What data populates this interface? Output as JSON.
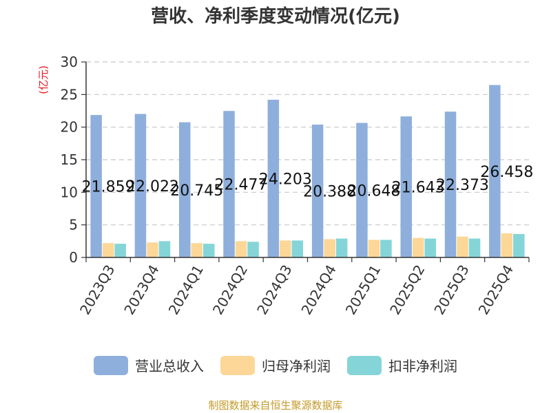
{
  "colors": {
    "revenue": "#8eafdc",
    "parent_net_profit": "#fcd798",
    "non_recurring_net_profit": "#85d5d8",
    "ylabel": "#e8141e",
    "source": "#c39a29"
  },
  "chart_data": {
    "type": "bar",
    "title": "营收、净利季度变动情况(亿元)",
    "ylabel": "(亿元)",
    "xlabel": "",
    "ylim": [
      0,
      30
    ],
    "yticks": [
      0,
      5,
      10,
      15,
      20,
      25,
      30
    ],
    "grid": true,
    "legend_position": "bottom",
    "categories": [
      "2023Q3",
      "2023Q4",
      "2024Q1",
      "2024Q2",
      "2024Q3",
      "2024Q4",
      "2025Q1",
      "2025Q2",
      "2025Q3",
      "2025Q4"
    ],
    "series": [
      {
        "name": "营业总收入",
        "values": [
          21.859,
          22.022,
          20.745,
          22.477,
          24.203,
          20.388,
          20.648,
          21.643,
          22.373,
          26.458
        ]
      },
      {
        "name": "归母净利润",
        "values": [
          2.2,
          2.3,
          2.2,
          2.5,
          2.6,
          2.8,
          2.7,
          3.0,
          3.2,
          3.7
        ]
      },
      {
        "name": "扣非净利润",
        "values": [
          2.1,
          2.5,
          2.1,
          2.4,
          2.6,
          2.9,
          2.7,
          2.9,
          2.9,
          3.6
        ]
      }
    ],
    "data_labels": [
      "21.859",
      "22.022",
      "20.745",
      "22.477",
      "24.203",
      "20.388",
      "20.648",
      "21.643",
      "22.373",
      "26.458"
    ]
  },
  "legend": [
    {
      "label": "营业总收入",
      "color": "#8eafdc"
    },
    {
      "label": "归母净利润",
      "color": "#fcd798"
    },
    {
      "label": "扣非净利润",
      "color": "#85d5d8"
    }
  ],
  "source_text": "制图数据来自恒生聚源数据库"
}
